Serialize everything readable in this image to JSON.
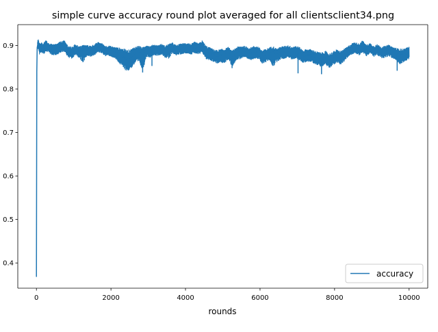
{
  "chart_data": {
    "type": "line",
    "title": "simple curve accuracy round plot averaged for all clientsclient34.png",
    "xlabel": "rounds",
    "ylabel": "",
    "xlim": [
      -500,
      10500
    ],
    "ylim": [
      0.342,
      0.948
    ],
    "x_ticks": [
      0,
      2000,
      4000,
      6000,
      8000,
      10000
    ],
    "x_tick_labels": [
      "0",
      "2000",
      "4000",
      "6000",
      "8000",
      "10000"
    ],
    "y_ticks": [
      0.4,
      0.5,
      0.6,
      0.7,
      0.8,
      0.9
    ],
    "y_tick_labels": "0.4|0.5|0.6|0.7|0.8|0.9",
    "grid": false,
    "legend_position": "lower right",
    "series": [
      {
        "name": "accuracy",
        "color": "#1f77b4",
        "x": [
          0,
          10,
          20,
          30,
          50,
          80,
          120,
          180,
          250,
          350,
          450,
          550,
          650,
          750,
          850,
          950,
          1050,
          1150,
          1250,
          1350,
          1450,
          1550,
          1650,
          1750,
          1850,
          1950,
          2050,
          2150,
          2250,
          2350,
          2450,
          2550,
          2650,
          2750,
          2850,
          2950,
          3050,
          3150,
          3250,
          3350,
          3450,
          3550,
          3650,
          3750,
          3850,
          3950,
          4050,
          4150,
          4250,
          4350,
          4450,
          4550,
          4650,
          4750,
          4850,
          4950,
          5050,
          5150,
          5250,
          5350,
          5450,
          5550,
          5650,
          5750,
          5850,
          5950,
          6050,
          6150,
          6250,
          6350,
          6450,
          6550,
          6650,
          6750,
          6850,
          6950,
          7050,
          7150,
          7250,
          7350,
          7450,
          7550,
          7650,
          7750,
          7850,
          7950,
          8050,
          8150,
          8250,
          8350,
          8450,
          8550,
          8650,
          8750,
          8850,
          8950,
          9050,
          9150,
          9250,
          9350,
          9450,
          9550,
          9650,
          9750,
          9850,
          9950,
          10000
        ],
        "y": [
          0.368,
          0.84,
          0.895,
          0.9,
          0.905,
          0.893,
          0.897,
          0.892,
          0.9,
          0.895,
          0.89,
          0.893,
          0.898,
          0.9,
          0.888,
          0.884,
          0.893,
          0.885,
          0.892,
          0.89,
          0.888,
          0.891,
          0.897,
          0.896,
          0.888,
          0.889,
          0.887,
          0.884,
          0.878,
          0.872,
          0.868,
          0.875,
          0.882,
          0.886,
          0.88,
          0.892,
          0.888,
          0.892,
          0.89,
          0.893,
          0.888,
          0.892,
          0.895,
          0.89,
          0.892,
          0.894,
          0.895,
          0.892,
          0.896,
          0.893,
          0.897,
          0.884,
          0.882,
          0.879,
          0.876,
          0.878,
          0.879,
          0.884,
          0.872,
          0.882,
          0.885,
          0.887,
          0.883,
          0.882,
          0.886,
          0.884,
          0.875,
          0.878,
          0.882,
          0.885,
          0.879,
          0.884,
          0.885,
          0.888,
          0.884,
          0.886,
          0.882,
          0.876,
          0.878,
          0.878,
          0.874,
          0.87,
          0.868,
          0.872,
          0.866,
          0.87,
          0.876,
          0.872,
          0.878,
          0.886,
          0.893,
          0.896,
          0.892,
          0.898,
          0.889,
          0.895,
          0.888,
          0.891,
          0.885,
          0.886,
          0.889,
          0.885,
          0.881,
          0.879,
          0.879,
          0.882,
          0.884
        ],
        "band_upper": [
          0.368,
          0.85,
          0.905,
          0.91,
          0.918,
          0.905,
          0.91,
          0.905,
          0.912,
          0.905,
          0.903,
          0.905,
          0.91,
          0.912,
          0.9,
          0.897,
          0.904,
          0.898,
          0.902,
          0.901,
          0.9,
          0.903,
          0.908,
          0.906,
          0.9,
          0.9,
          0.898,
          0.896,
          0.895,
          0.893,
          0.89,
          0.893,
          0.898,
          0.9,
          0.896,
          0.902,
          0.899,
          0.903,
          0.901,
          0.904,
          0.9,
          0.904,
          0.907,
          0.901,
          0.904,
          0.906,
          0.907,
          0.904,
          0.909,
          0.905,
          0.912,
          0.9,
          0.896,
          0.892,
          0.89,
          0.892,
          0.893,
          0.897,
          0.888,
          0.896,
          0.899,
          0.9,
          0.897,
          0.896,
          0.9,
          0.898,
          0.89,
          0.892,
          0.896,
          0.899,
          0.893,
          0.898,
          0.899,
          0.901,
          0.898,
          0.9,
          0.897,
          0.89,
          0.892,
          0.892,
          0.889,
          0.886,
          0.884,
          0.888,
          0.882,
          0.886,
          0.891,
          0.888,
          0.892,
          0.898,
          0.905,
          0.908,
          0.905,
          0.912,
          0.902,
          0.906,
          0.9,
          0.903,
          0.898,
          0.899,
          0.902,
          0.898,
          0.895,
          0.893,
          0.893,
          0.896,
          0.898
        ],
        "band_lower": [
          0.368,
          0.83,
          0.885,
          0.888,
          0.89,
          0.879,
          0.883,
          0.878,
          0.887,
          0.882,
          0.875,
          0.878,
          0.883,
          0.885,
          0.872,
          0.868,
          0.879,
          0.869,
          0.861,
          0.876,
          0.874,
          0.877,
          0.884,
          0.882,
          0.875,
          0.876,
          0.872,
          0.866,
          0.855,
          0.845,
          0.84,
          0.848,
          0.858,
          0.86,
          0.842,
          0.874,
          0.872,
          0.878,
          0.876,
          0.879,
          0.872,
          0.868,
          0.882,
          0.877,
          0.879,
          0.881,
          0.882,
          0.879,
          0.882,
          0.878,
          0.883,
          0.868,
          0.866,
          0.862,
          0.858,
          0.86,
          0.858,
          0.869,
          0.85,
          0.866,
          0.868,
          0.872,
          0.868,
          0.866,
          0.87,
          0.868,
          0.858,
          0.861,
          0.866,
          0.85,
          0.862,
          0.868,
          0.869,
          0.873,
          0.867,
          0.87,
          0.866,
          0.86,
          0.862,
          0.862,
          0.858,
          0.854,
          0.851,
          0.856,
          0.848,
          0.854,
          0.86,
          0.856,
          0.862,
          0.872,
          0.879,
          0.882,
          0.877,
          0.884,
          0.874,
          0.882,
          0.874,
          0.877,
          0.871,
          0.871,
          0.875,
          0.87,
          0.865,
          0.854,
          0.862,
          0.866,
          0.869
        ],
        "dips": [
          {
            "x": 2850,
            "y": 0.838
          },
          {
            "x": 3100,
            "y": 0.853
          },
          {
            "x": 5250,
            "y": 0.848
          },
          {
            "x": 7020,
            "y": 0.836
          },
          {
            "x": 7650,
            "y": 0.834
          },
          {
            "x": 9680,
            "y": 0.842
          }
        ]
      }
    ]
  }
}
